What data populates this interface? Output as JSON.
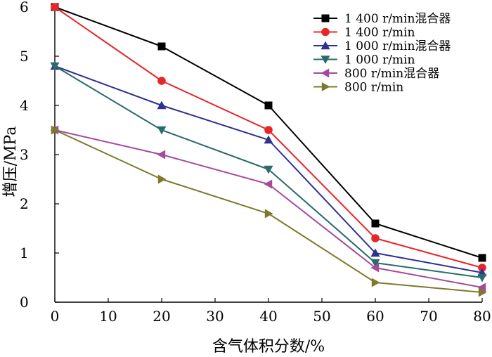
{
  "chart_data": {
    "type": "line",
    "title": "",
    "xlabel": "含气体积分数/%",
    "ylabel": "增压/MPa",
    "xlim": [
      0,
      80
    ],
    "ylim": [
      0,
      6
    ],
    "xticks": [
      0,
      10,
      20,
      30,
      40,
      50,
      60,
      70,
      80
    ],
    "yticks": [
      0,
      1,
      2,
      3,
      4,
      5,
      6
    ],
    "grid": false,
    "legend_position": "top-right",
    "x": [
      0,
      20,
      40,
      60,
      80
    ],
    "series": [
      {
        "name": "1 400 r/min混合器",
        "color": "#000000",
        "marker": "square",
        "values": [
          6.0,
          5.2,
          4.0,
          1.6,
          0.9
        ]
      },
      {
        "name": "1 400 r/min",
        "color": "#e8262a",
        "marker": "circle",
        "values": [
          6.0,
          4.5,
          3.5,
          1.3,
          0.7
        ]
      },
      {
        "name": "1 000 r/min混合器",
        "color": "#2e3192",
        "marker": "triangle-up",
        "values": [
          4.8,
          4.0,
          3.3,
          1.0,
          0.6
        ]
      },
      {
        "name": "1 000 r/min",
        "color": "#2a6b6b",
        "marker": "triangle-down",
        "values": [
          4.8,
          3.5,
          2.7,
          0.8,
          0.5
        ]
      },
      {
        "name": "800 r/min混合器",
        "color": "#a54a9e",
        "marker": "triangle-left",
        "values": [
          3.5,
          3.0,
          2.4,
          0.7,
          0.3
        ]
      },
      {
        "name": "800 r/min",
        "color": "#7d7a2c",
        "marker": "triangle-right",
        "values": [
          3.5,
          2.5,
          1.8,
          0.4,
          0.2
        ]
      }
    ]
  }
}
